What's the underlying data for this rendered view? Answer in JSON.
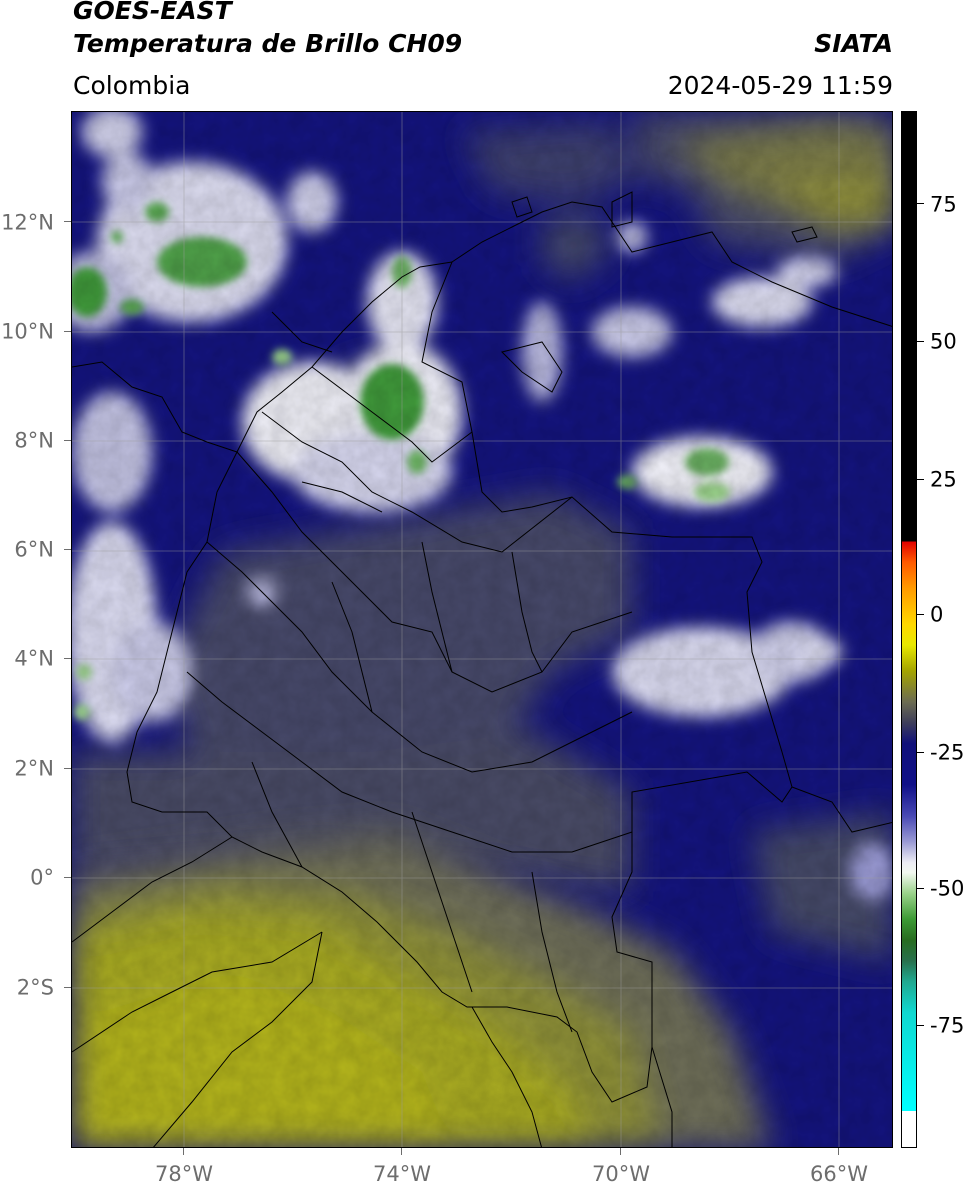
{
  "header": {
    "satellite": "GOES-EAST",
    "product": "Temperatura de Brillo CH09",
    "region": "Colombia",
    "agency": "SIATA",
    "datetime": "2024-05-29 11:59"
  },
  "map": {
    "lat_labels": [
      "12°N",
      "10°N",
      "8°N",
      "6°N",
      "4°N",
      "2°N",
      "0°",
      "2°S"
    ],
    "lon_labels": [
      "78°W",
      "74°W",
      "70°W",
      "66°W"
    ],
    "colors": {
      "warm_surface": "#a8aa22",
      "mid_level": "#474a6a",
      "cold_cloud": "#14147e",
      "very_cold": "#e8e8f4",
      "coldest_core": "#3f9a3a",
      "border_line": "#000000"
    }
  },
  "colorbar": {
    "labels": [
      "75",
      "50",
      "25",
      "0",
      "-25",
      "-50",
      "-75"
    ],
    "colors": {
      "max": "#000000",
      "red": "#e00000",
      "orange": "#ff9a00",
      "yellow": "#e8e800",
      "olive": "#6c6c52",
      "navy": "#10107a",
      "white": "#ececf4",
      "green": "#3c9a34",
      "cyan": "#00ffff"
    }
  }
}
